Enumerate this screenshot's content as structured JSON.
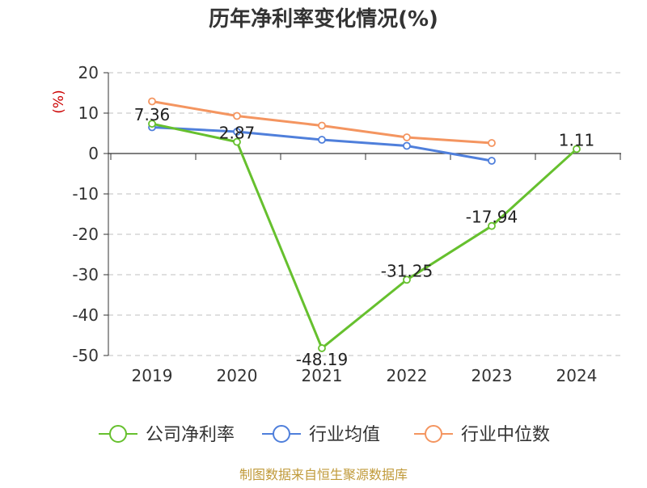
{
  "chart_data": {
    "type": "line",
    "title": "历年净利率变化情况(%)",
    "ylabel": "(%)",
    "xlabel": "",
    "categories": [
      "2019",
      "2020",
      "2021",
      "2022",
      "2023",
      "2024"
    ],
    "ylim": [
      -50,
      20
    ],
    "yticks": [
      20,
      10,
      0,
      -10,
      -20,
      -30,
      -40,
      -50
    ],
    "grid": true,
    "legend_position": "bottom",
    "series": [
      {
        "name": "公司净利率",
        "color": "#66c02e",
        "values": [
          7.36,
          2.87,
          -48.19,
          -31.25,
          -17.94,
          1.11
        ],
        "labels": [
          "7.36",
          "2.87",
          "-48.19",
          "-31.25",
          "-17.94",
          "1.11"
        ]
      },
      {
        "name": "行业均值",
        "color": "#4f7fdb",
        "values": [
          6.5,
          5.4,
          3.4,
          1.9,
          -1.8,
          null
        ]
      },
      {
        "name": "行业中位数",
        "color": "#f49560",
        "values": [
          12.9,
          9.3,
          6.9,
          4.0,
          2.6,
          null
        ]
      }
    ]
  },
  "source": "制图数据来自恒生聚源数据库"
}
